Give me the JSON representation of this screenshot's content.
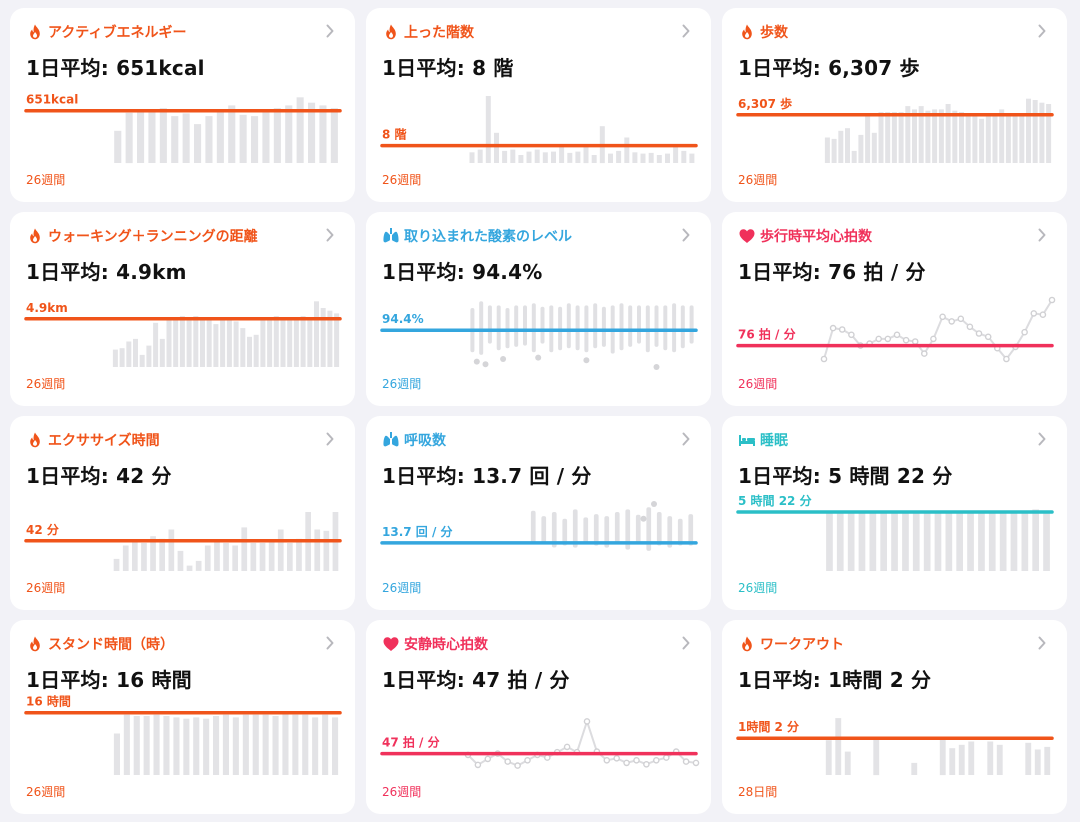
{
  "cards": [
    {
      "title": "アクティブエネルギー",
      "icon": "flame-icon",
      "color": "#f0541a",
      "average": "1日平均: 651kcal",
      "value_label": "651kcal",
      "period": "26週間",
      "type": "bar",
      "ref": 0.78,
      "values": [
        0.48,
        0.75,
        0.78,
        0.78,
        0.82,
        0.7,
        0.74,
        0.58,
        0.7,
        0.78,
        0.86,
        0.72,
        0.7,
        0.78,
        0.82,
        0.86,
        0.98,
        0.9,
        0.86,
        0.82
      ]
    },
    {
      "title": "上った階数",
      "icon": "flame-icon",
      "color": "#f0541a",
      "average": "1日平均: 8 階",
      "value_label": "8 階",
      "period": "26週間",
      "type": "bar",
      "ref": 0.26,
      "values": [
        0.16,
        0.2,
        1.0,
        0.45,
        0.18,
        0.2,
        0.12,
        0.17,
        0.2,
        0.16,
        0.17,
        0.24,
        0.15,
        0.17,
        0.25,
        0.12,
        0.55,
        0.14,
        0.18,
        0.38,
        0.16,
        0.14,
        0.15,
        0.12,
        0.14,
        0.28,
        0.18,
        0.14
      ]
    },
    {
      "title": "歩数",
      "icon": "flame-icon",
      "color": "#f0541a",
      "average": "1日平均: 6,307 歩",
      "value_label": "6,307 歩",
      "period": "26週間",
      "type": "bar",
      "ref": 0.72,
      "values": [
        0.38,
        0.36,
        0.48,
        0.52,
        0.18,
        0.42,
        0.72,
        0.45,
        0.76,
        0.76,
        0.76,
        0.76,
        0.85,
        0.8,
        0.85,
        0.78,
        0.8,
        0.8,
        0.88,
        0.78,
        0.76,
        0.74,
        0.72,
        0.66,
        0.72,
        0.72,
        0.8,
        0.72,
        0.72,
        0.72,
        0.96,
        0.94,
        0.9,
        0.88
      ]
    },
    {
      "title": "ウォーキング＋ランニングの距離",
      "icon": "flame-icon",
      "color": "#f0541a",
      "average": "1日平均: 4.9km",
      "value_label": "4.9km",
      "period": "26週間",
      "type": "bar",
      "ref": 0.72,
      "values": [
        0.26,
        0.28,
        0.38,
        0.42,
        0.18,
        0.32,
        0.66,
        0.42,
        0.72,
        0.72,
        0.76,
        0.72,
        0.76,
        0.7,
        0.72,
        0.64,
        0.7,
        0.72,
        0.68,
        0.58,
        0.45,
        0.48,
        0.72,
        0.7,
        0.76,
        0.72,
        0.7,
        0.72,
        0.76,
        0.74,
        0.98,
        0.88,
        0.84,
        0.8
      ]
    },
    {
      "title": "取り込まれた酸素のレベル",
      "icon": "lungs-icon",
      "color": "#34a6de",
      "average": "1日平均: 94.4%",
      "value_label": "94.4%",
      "period": "26週間",
      "type": "spo2",
      "ref": 0.55,
      "values": [
        [
          0.22,
          0.88
        ],
        [
          0.18,
          0.98
        ],
        [
          0.35,
          0.92
        ],
        [
          0.25,
          0.92
        ],
        [
          0.28,
          0.88
        ],
        [
          0.3,
          0.92
        ],
        [
          0.32,
          0.92
        ],
        [
          0.22,
          0.95
        ],
        [
          0.35,
          0.9
        ],
        [
          0.22,
          0.92
        ],
        [
          0.25,
          0.9
        ],
        [
          0.28,
          0.95
        ],
        [
          0.25,
          0.92
        ],
        [
          0.22,
          0.92
        ],
        [
          0.28,
          0.95
        ],
        [
          0.3,
          0.9
        ],
        [
          0.2,
          0.92
        ],
        [
          0.25,
          0.95
        ],
        [
          0.3,
          0.92
        ],
        [
          0.35,
          0.92
        ],
        [
          0.22,
          0.92
        ],
        [
          0.3,
          0.92
        ],
        [
          0.25,
          0.92
        ],
        [
          0.22,
          0.95
        ],
        [
          0.28,
          0.92
        ],
        [
          0.35,
          0.92
        ]
      ],
      "dots": [
        [
          0.5,
          0.08
        ],
        [
          1.5,
          0.04
        ],
        [
          3.5,
          0.12
        ],
        [
          7.5,
          0.14
        ],
        [
          13,
          0.1
        ],
        [
          21,
          0.0
        ]
      ]
    },
    {
      "title": "歩行時平均心拍数",
      "icon": "heart-icon",
      "color": "#f0315b",
      "average": "1日平均: 76 拍 / 分",
      "value_label": "76 拍 / 分",
      "period": "26週間",
      "type": "line",
      "ref": 0.32,
      "values": [
        0.12,
        0.58,
        0.56,
        0.48,
        0.32,
        0.35,
        0.42,
        0.42,
        0.48,
        0.4,
        0.38,
        0.2,
        0.42,
        0.75,
        0.68,
        0.72,
        0.6,
        0.5,
        0.45,
        0.28,
        0.12,
        0.3,
        0.52,
        0.8,
        0.78,
        1.0
      ]
    },
    {
      "title": "エクササイズ時間",
      "icon": "flame-icon",
      "color": "#f0541a",
      "average": "1日平均: 42 分",
      "value_label": "42 分",
      "period": "26週間",
      "type": "bar",
      "ref": 0.45,
      "values": [
        0.18,
        0.38,
        0.45,
        0.42,
        0.52,
        0.48,
        0.62,
        0.3,
        0.08,
        0.15,
        0.38,
        0.45,
        0.42,
        0.38,
        0.65,
        0.42,
        0.42,
        0.45,
        0.62,
        0.42,
        0.48,
        0.88,
        0.62,
        0.6,
        0.88
      ]
    },
    {
      "title": "呼吸数",
      "icon": "lungs-icon",
      "color": "#34a6de",
      "average": "1日平均: 13.7 回 / 分",
      "value_label": "13.7 回 / 分",
      "period": "26週間",
      "type": "resp",
      "ref": 0.42,
      "values": [
        [
          0.42,
          0.9
        ],
        [
          0.42,
          0.82
        ],
        [
          0.35,
          0.88
        ],
        [
          0.38,
          0.78
        ],
        [
          0.35,
          0.92
        ],
        [
          0.4,
          0.8
        ],
        [
          0.38,
          0.85
        ],
        [
          0.35,
          0.82
        ],
        [
          0.4,
          0.88
        ],
        [
          0.32,
          0.92
        ],
        [
          0.4,
          0.84
        ],
        [
          0.3,
          0.95
        ],
        [
          0.38,
          0.88
        ],
        [
          0.35,
          0.82
        ],
        [
          0.38,
          0.78
        ],
        [
          0.38,
          0.85
        ]
      ],
      "dots": [
        [
          11.5,
          1.0
        ],
        [
          10.5,
          0.78
        ]
      ]
    },
    {
      "title": "睡眠",
      "icon": "bed-icon",
      "color": "#2bbfc7",
      "average": "1日平均: 5 時間 22 分",
      "value_label": "5 時間 22 分",
      "period": "26週間",
      "type": "bar",
      "ref": 0.88,
      "values": [
        0.88,
        0.9,
        0.88,
        0.9,
        0.88,
        0.9,
        0.88,
        0.9,
        0.88,
        0.9,
        0.9,
        0.88,
        0.9,
        0.88,
        0.9,
        0.88,
        0.9,
        0.88,
        0.9,
        0.92,
        0.9
      ]
    },
    {
      "title": "スタンド時間（時）",
      "icon": "flame-icon",
      "color": "#f0541a",
      "average": "1日平均: 16 時間",
      "value_label": "16 時間",
      "period": "26週間",
      "type": "bar",
      "ref": 0.93,
      "values": [
        0.62,
        0.9,
        0.88,
        0.88,
        0.9,
        0.88,
        0.86,
        0.84,
        0.86,
        0.84,
        0.88,
        0.9,
        0.86,
        0.9,
        0.9,
        0.9,
        0.88,
        0.92,
        0.9,
        0.9,
        0.86,
        0.9,
        0.86
      ]
    },
    {
      "title": "安静時心拍数",
      "icon": "heart-icon",
      "color": "#f0315b",
      "average": "1日平均: 47 拍 / 分",
      "value_label": "47 拍 / 分",
      "period": "26週間",
      "type": "line",
      "ref": 0.32,
      "values": [
        0.3,
        0.15,
        0.24,
        0.32,
        0.2,
        0.14,
        0.22,
        0.3,
        0.26,
        0.34,
        0.42,
        0.34,
        0.8,
        0.35,
        0.22,
        0.25,
        0.18,
        0.22,
        0.16,
        0.22,
        0.26,
        0.35,
        0.2,
        0.18
      ]
    },
    {
      "title": "ワークアウト",
      "icon": "flame-icon",
      "color": "#f0541a",
      "average": "1日平均: 1時間 2 分",
      "value_label": "1時間 2 分",
      "period": "28日間",
      "type": "bar",
      "ref": 0.55,
      "values": [
        0.52,
        0.85,
        0.35,
        0,
        0,
        0.55,
        0,
        0,
        0,
        0.18,
        0,
        0,
        0.55,
        0.4,
        0.45,
        0.5,
        0,
        0.5,
        0.45,
        0,
        0,
        0.48,
        0.38,
        0.42
      ]
    }
  ]
}
